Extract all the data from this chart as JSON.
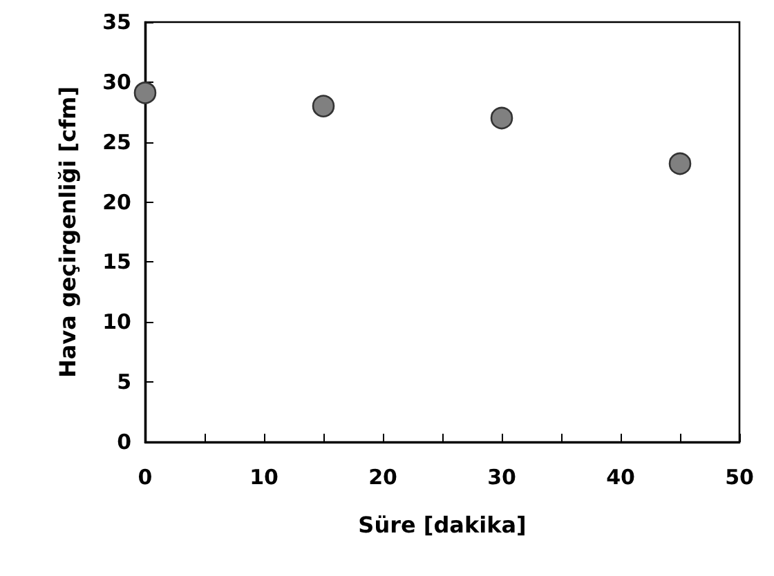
{
  "chart_data": {
    "type": "scatter",
    "xlabel": "Süre [dakika]",
    "ylabel": "Hava geçirgenliği [cfm]",
    "x": [
      0,
      15,
      30,
      45
    ],
    "series": [
      {
        "color": "#808080",
        "values": [
          29.1,
          28.0,
          27.0,
          23.2
        ]
      }
    ],
    "marker": "circle",
    "xlim": [
      0,
      50
    ],
    "xticks": [
      0,
      {
        "value": 5,
        "label": null
      },
      10,
      {
        "value": 15,
        "label": null
      },
      20,
      {
        "value": 25,
        "label": null
      },
      30,
      {
        "value": 35,
        "label": null
      },
      40,
      {
        "value": 45,
        "label": null
      },
      50
    ],
    "ylim": [
      0,
      35
    ],
    "yticks": [
      0,
      5,
      10,
      15,
      20,
      25,
      30,
      35
    ]
  }
}
